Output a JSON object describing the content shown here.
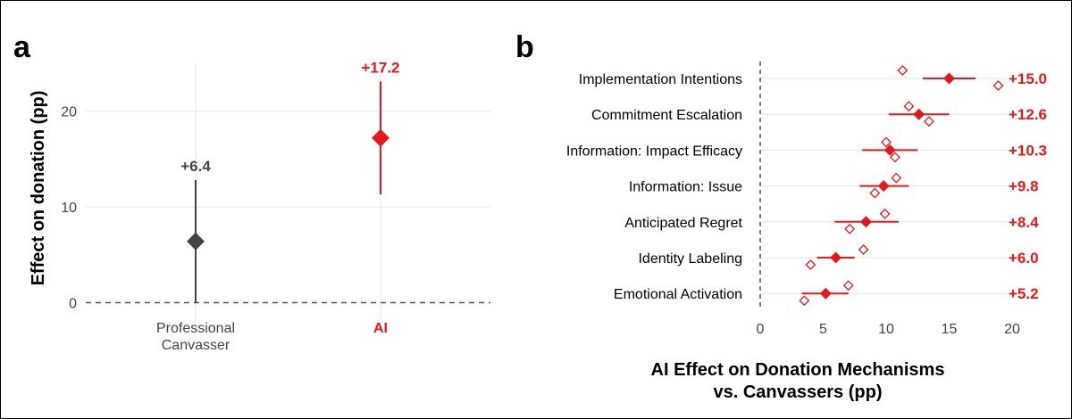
{
  "panels": {
    "a_label": "a",
    "b_label": "b"
  },
  "colors": {
    "ai": "#e31a1c",
    "human": "#444444",
    "grid": "#e6e6e6",
    "text": "#000000",
    "axis_text": "#444444"
  },
  "chart_data": [
    {
      "panel": "a",
      "type": "scatter",
      "ylabel": "Effect on donation (pp)",
      "ylim": [
        -2,
        25
      ],
      "yticks": [
        0,
        10,
        20
      ],
      "grid": true,
      "categories": [
        {
          "label_lines": [
            "Professional",
            "Canvasser"
          ],
          "value": 6.4,
          "ci": [
            0,
            12.8
          ],
          "label": "+6.4",
          "color": "#444444"
        },
        {
          "label_lines": [
            "AI"
          ],
          "value": 17.2,
          "ci": [
            11.3,
            23.1
          ],
          "label": "+17.2",
          "color": "#e31a1c"
        }
      ]
    },
    {
      "panel": "b",
      "type": "scatter",
      "xlabel_lines": [
        "AI Effect on Donation Mechanisms",
        "vs. Canvassers (pp)"
      ],
      "xlim": [
        0,
        20
      ],
      "xticks": [
        0,
        5,
        10,
        15,
        20
      ],
      "grid": true,
      "series_legend": [],
      "items": [
        {
          "label": "Implementation Intentions",
          "estimate": 15.0,
          "ci": [
            12.9,
            17.1
          ],
          "points": [
            11.3,
            18.9
          ],
          "value_label": "+15.0"
        },
        {
          "label": "Commitment Escalation",
          "estimate": 12.6,
          "ci": [
            10.2,
            15.0
          ],
          "points": [
            11.8,
            13.4
          ],
          "value_label": "+12.6"
        },
        {
          "label": "Information: Impact Efficacy",
          "estimate": 10.3,
          "ci": [
            8.1,
            12.5
          ],
          "points": [
            10.0,
            10.7
          ],
          "value_label": "+10.3"
        },
        {
          "label": "Information: Issue",
          "estimate": 9.8,
          "ci": [
            7.9,
            11.8
          ],
          "points": [
            10.8,
            9.1
          ],
          "value_label": "+9.8"
        },
        {
          "label": "Anticipated Regret",
          "estimate": 8.4,
          "ci": [
            5.9,
            11.0
          ],
          "points": [
            9.9,
            7.1
          ],
          "value_label": "+8.4"
        },
        {
          "label": "Identity Labeling",
          "estimate": 6.0,
          "ci": [
            4.5,
            7.5
          ],
          "points": [
            8.2,
            4.0
          ],
          "value_label": "+6.0"
        },
        {
          "label": "Emotional Activation",
          "estimate": 5.2,
          "ci": [
            3.3,
            7.0
          ],
          "points": [
            7.0,
            3.5
          ],
          "value_label": "+5.2"
        }
      ]
    }
  ]
}
